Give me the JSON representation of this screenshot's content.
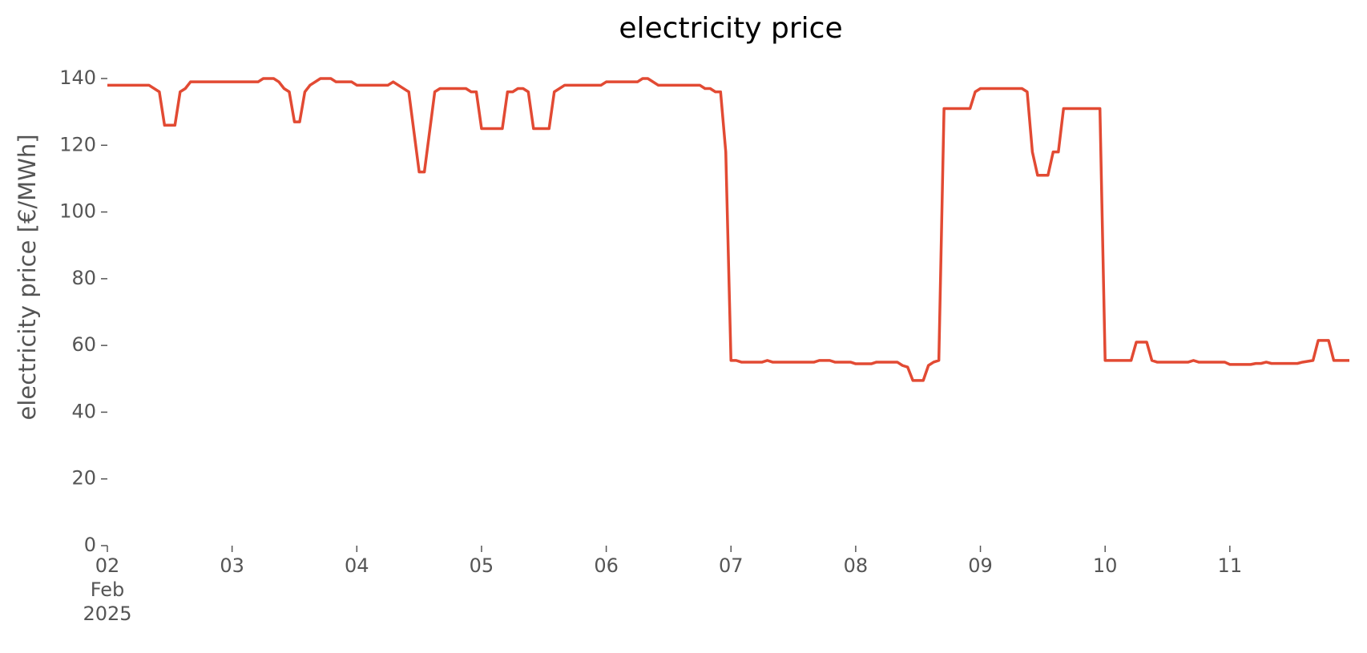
{
  "chart_data": {
    "type": "line",
    "title": "electricity price",
    "ylabel": "electricity price [€/MWh]",
    "x": [
      "2025-02-02T00:00",
      "2025-02-02T08:00",
      "2025-02-02T10:00",
      "2025-02-02T11:00",
      "2025-02-02T13:00",
      "2025-02-02T14:00",
      "2025-02-02T15:00",
      "2025-02-02T16:00",
      "2025-02-03T05:00",
      "2025-02-03T06:00",
      "2025-02-03T08:00",
      "2025-02-03T09:00",
      "2025-02-03T10:00",
      "2025-02-03T11:00",
      "2025-02-03T12:00",
      "2025-02-03T13:00",
      "2025-02-03T14:00",
      "2025-02-03T15:00",
      "2025-02-03T17:00",
      "2025-02-03T19:00",
      "2025-02-03T20:00",
      "2025-02-03T23:00",
      "2025-02-04T00:00",
      "2025-02-04T06:00",
      "2025-02-04T07:00",
      "2025-02-04T10:00",
      "2025-02-04T12:00",
      "2025-02-04T13:00",
      "2025-02-04T15:00",
      "2025-02-04T16:00",
      "2025-02-04T21:00",
      "2025-02-04T22:00",
      "2025-02-04T23:00",
      "2025-02-05T00:00",
      "2025-02-05T04:00",
      "2025-02-05T05:00",
      "2025-02-05T06:00",
      "2025-02-05T07:00",
      "2025-02-05T08:00",
      "2025-02-05T09:00",
      "2025-02-05T10:00",
      "2025-02-05T13:00",
      "2025-02-05T14:00",
      "2025-02-05T16:00",
      "2025-02-05T23:00",
      "2025-02-06T00:00",
      "2025-02-06T06:00",
      "2025-02-06T07:00",
      "2025-02-06T08:00",
      "2025-02-06T10:00",
      "2025-02-06T18:00",
      "2025-02-06T19:00",
      "2025-02-06T20:00",
      "2025-02-06T21:00",
      "2025-02-06T22:00",
      "2025-02-06T23:00",
      "2025-02-07T00:00",
      "2025-02-07T01:00",
      "2025-02-07T02:00",
      "2025-02-07T06:00",
      "2025-02-07T07:00",
      "2025-02-07T08:00",
      "2025-02-07T16:00",
      "2025-02-07T17:00",
      "2025-02-07T19:00",
      "2025-02-07T20:00",
      "2025-02-07T23:00",
      "2025-02-08T00:00",
      "2025-02-08T03:00",
      "2025-02-08T04:00",
      "2025-02-08T08:00",
      "2025-02-08T09:00",
      "2025-02-08T10:00",
      "2025-02-08T11:00",
      "2025-02-08T13:00",
      "2025-02-08T14:00",
      "2025-02-08T15:00",
      "2025-02-08T16:00",
      "2025-02-08T17:00",
      "2025-02-08T22:00",
      "2025-02-08T23:00",
      "2025-02-09T00:00",
      "2025-02-09T08:00",
      "2025-02-09T09:00",
      "2025-02-09T10:00",
      "2025-02-09T11:00",
      "2025-02-09T13:00",
      "2025-02-09T14:00",
      "2025-02-09T15:00",
      "2025-02-09T16:00",
      "2025-02-09T23:00",
      "2025-02-10T00:00",
      "2025-02-10T05:00",
      "2025-02-10T06:00",
      "2025-02-10T08:00",
      "2025-02-10T09:00",
      "2025-02-10T10:00",
      "2025-02-10T16:00",
      "2025-02-10T17:00",
      "2025-02-10T18:00",
      "2025-02-10T23:00",
      "2025-02-11T00:00",
      "2025-02-11T04:00",
      "2025-02-11T05:00",
      "2025-02-11T06:00",
      "2025-02-11T07:00",
      "2025-02-11T08:00",
      "2025-02-11T13:00",
      "2025-02-11T14:00",
      "2025-02-11T16:00",
      "2025-02-11T17:00",
      "2025-02-11T19:00",
      "2025-02-11T20:00",
      "2025-02-11T23:00"
    ],
    "series": [
      {
        "color": "#e24a33",
        "values": [
          138,
          138,
          136,
          126,
          126,
          136,
          137,
          139,
          139,
          140,
          140,
          139,
          137,
          136,
          127,
          127,
          136,
          138,
          140,
          140,
          139,
          139,
          138,
          138,
          139,
          136,
          112,
          112,
          136,
          137,
          137,
          136,
          136,
          125,
          125,
          136,
          136,
          137,
          137,
          136,
          125,
          125,
          136,
          138,
          138,
          139,
          139,
          140,
          140,
          138,
          138,
          137,
          137,
          136,
          136,
          118,
          55.5,
          55.5,
          55,
          55,
          55.5,
          55,
          55,
          55.5,
          55.5,
          55,
          55,
          54.5,
          54.5,
          55,
          55,
          54,
          53.5,
          49.5,
          49.5,
          54,
          55,
          55.5,
          131,
          131,
          136,
          137,
          137,
          136,
          118,
          111,
          111,
          118,
          118,
          131,
          131,
          55.5,
          55.5,
          61,
          61,
          55.5,
          55,
          55,
          55.5,
          55,
          55,
          54.3,
          54.3,
          54.6,
          54.6,
          55,
          54.6,
          54.6,
          55,
          55.5,
          61.5,
          61.5,
          55.5,
          55.5
        ]
      }
    ],
    "xlim": [
      "2025-02-02T00:00",
      "2025-02-11T23:00"
    ],
    "xticks": [
      {
        "value": "2025-02-02T00:00",
        "label": "02\nFeb\n2025"
      },
      {
        "value": "2025-02-03T00:00",
        "label": "03"
      },
      {
        "value": "2025-02-04T00:00",
        "label": "04"
      },
      {
        "value": "2025-02-05T00:00",
        "label": "05"
      },
      {
        "value": "2025-02-06T00:00",
        "label": "06"
      },
      {
        "value": "2025-02-07T00:00",
        "label": "07"
      },
      {
        "value": "2025-02-08T00:00",
        "label": "08"
      },
      {
        "value": "2025-02-09T00:00",
        "label": "09"
      },
      {
        "value": "2025-02-10T00:00",
        "label": "10"
      },
      {
        "value": "2025-02-11T00:00",
        "label": "11"
      }
    ],
    "ylim": [
      0,
      140
    ],
    "yticks": [
      0,
      20,
      40,
      60,
      80,
      100,
      120,
      140
    ],
    "grid": false
  }
}
